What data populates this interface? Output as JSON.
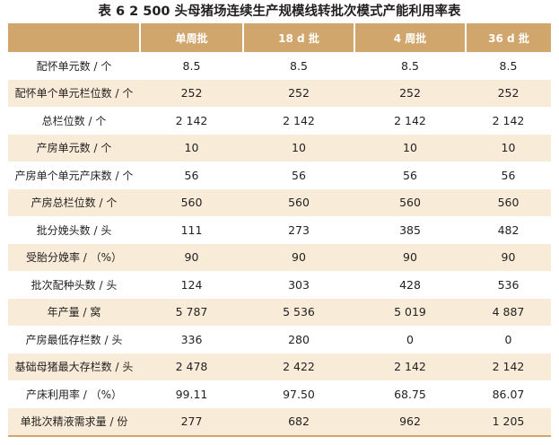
{
  "caption": "表 6  2 500 头母猪场连续生产规模线转批次模式产能利用率表",
  "table": {
    "headers": [
      "",
      "单周批",
      "18 d 批",
      "4 周批",
      "36 d 批"
    ],
    "rows": [
      {
        "label": "配怀单元数 / 个",
        "values": [
          "8.5",
          "8.5",
          "8.5",
          "8.5"
        ]
      },
      {
        "label": "配怀单个单元栏位数 / 个",
        "values": [
          "252",
          "252",
          "252",
          "252"
        ]
      },
      {
        "label": "总栏位数 / 个",
        "values": [
          "2 142",
          "2 142",
          "2 142",
          "2 142"
        ]
      },
      {
        "label": "产房单元数 / 个",
        "values": [
          "10",
          "10",
          "10",
          "10"
        ]
      },
      {
        "label": "产房单个单元产床数 / 个",
        "values": [
          "56",
          "56",
          "56",
          "56"
        ]
      },
      {
        "label": "产房总栏位数 / 个",
        "values": [
          "560",
          "560",
          "560",
          "560"
        ]
      },
      {
        "label": "批分娩头数 / 头",
        "values": [
          "111",
          "273",
          "385",
          "482"
        ]
      },
      {
        "label": "受胎分娩率 / （%）",
        "values": [
          "90",
          "90",
          "90",
          "90"
        ]
      },
      {
        "label": "批次配种头数 / 头",
        "values": [
          "124",
          "303",
          "428",
          "536"
        ]
      },
      {
        "label": "年产量 / 窝",
        "values": [
          "5 787",
          "5 536",
          "5 019",
          "4 887"
        ]
      },
      {
        "label": "产房最低存栏数 / 头",
        "values": [
          "336",
          "280",
          "0",
          "0"
        ]
      },
      {
        "label": "基础母猪最大存栏数 / 头",
        "values": [
          "2 478",
          "2 422",
          "2 142",
          "2 142"
        ]
      },
      {
        "label": "产床利用率 / （%）",
        "values": [
          "99.11",
          "97.50",
          "68.75",
          "86.07"
        ]
      },
      {
        "label": "单批次精液需求量 / 份",
        "values": [
          "277",
          "682",
          "962",
          "1 205"
        ]
      }
    ]
  },
  "colors": {
    "header_bg": "#d1a66d",
    "header_text": "#ffffff",
    "stripe_bg": "#f8ecd8",
    "text": "#231f20"
  }
}
